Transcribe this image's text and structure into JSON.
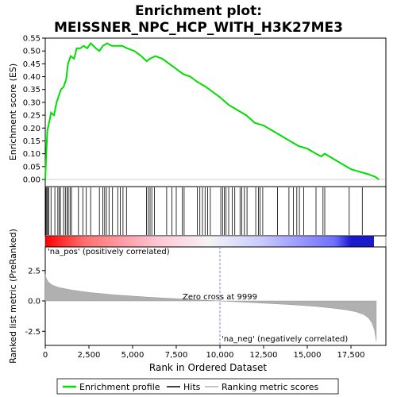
{
  "chart_data": {
    "type": "line",
    "title_line1": "Enrichment plot:",
    "title_line2": "MEISSNER_NPC_HCP_WITH_H3K27ME3",
    "top_panel": {
      "ylabel": "Enrichment score (ES)",
      "ylim": [
        0,
        0.55
      ],
      "yticks": [
        "0.00",
        "0.05",
        "0.10",
        "0.15",
        "0.20",
        "0.25",
        "0.30",
        "0.35",
        "0.40",
        "0.45",
        "0.50",
        "0.55"
      ],
      "ytick_values": [
        0,
        0.05,
        0.1,
        0.15,
        0.2,
        0.25,
        0.3,
        0.35,
        0.4,
        0.45,
        0.5,
        0.55
      ],
      "series_color": "#00dd00",
      "es_curve": [
        [
          0,
          0.0
        ],
        [
          60,
          0.1
        ],
        [
          120,
          0.19
        ],
        [
          250,
          0.23
        ],
        [
          330,
          0.26
        ],
        [
          500,
          0.25
        ],
        [
          650,
          0.3
        ],
        [
          800,
          0.33
        ],
        [
          900,
          0.35
        ],
        [
          1050,
          0.36
        ],
        [
          1200,
          0.39
        ],
        [
          1300,
          0.45
        ],
        [
          1450,
          0.48
        ],
        [
          1650,
          0.47
        ],
        [
          1800,
          0.51
        ],
        [
          2000,
          0.51
        ],
        [
          2200,
          0.52
        ],
        [
          2400,
          0.51
        ],
        [
          2600,
          0.53
        ],
        [
          2900,
          0.51
        ],
        [
          3100,
          0.5
        ],
        [
          3300,
          0.52
        ],
        [
          3550,
          0.53
        ],
        [
          3800,
          0.52
        ],
        [
          4100,
          0.52
        ],
        [
          4400,
          0.52
        ],
        [
          4700,
          0.51
        ],
        [
          5100,
          0.5
        ],
        [
          5500,
          0.48
        ],
        [
          5800,
          0.46
        ],
        [
          6000,
          0.47
        ],
        [
          6300,
          0.48
        ],
        [
          6700,
          0.47
        ],
        [
          7100,
          0.45
        ],
        [
          7500,
          0.43
        ],
        [
          7900,
          0.41
        ],
        [
          8300,
          0.4
        ],
        [
          8700,
          0.38
        ],
        [
          9200,
          0.36
        ],
        [
          9600,
          0.34
        ],
        [
          10000,
          0.32
        ],
        [
          10500,
          0.29
        ],
        [
          11000,
          0.27
        ],
        [
          11500,
          0.25
        ],
        [
          12000,
          0.22
        ],
        [
          12500,
          0.21
        ],
        [
          13000,
          0.19
        ],
        [
          13500,
          0.17
        ],
        [
          14000,
          0.15
        ],
        [
          14500,
          0.13
        ],
        [
          15000,
          0.12
        ],
        [
          15500,
          0.1
        ],
        [
          15800,
          0.09
        ],
        [
          16000,
          0.1
        ],
        [
          16500,
          0.08
        ],
        [
          17000,
          0.06
        ],
        [
          17500,
          0.04
        ],
        [
          18000,
          0.03
        ],
        [
          18500,
          0.02
        ],
        [
          18900,
          0.01
        ],
        [
          19100,
          0.0
        ]
      ]
    },
    "hits": [
      40,
      90,
      140,
      200,
      330,
      550,
      720,
      800,
      870,
      1050,
      1150,
      1250,
      1320,
      1420,
      1500,
      1900,
      2150,
      2350,
      2600,
      3100,
      3300,
      3400,
      3500,
      3650,
      3850,
      4150,
      4300,
      4450,
      4650,
      5800,
      5900,
      6000,
      6100,
      6250,
      6950,
      7250,
      7500,
      7850,
      7950,
      8700,
      8850,
      9000,
      9150,
      9300,
      9450,
      10050,
      10150,
      10250,
      10350,
      10500,
      10700,
      10850,
      11150,
      11250,
      11400,
      11550,
      12050,
      12200,
      12300,
      12450,
      13300,
      13950,
      14200,
      14400,
      14550,
      14800,
      15500,
      15900,
      16000,
      17400,
      18150
    ],
    "hits_color": "#000000",
    "middle_panel": {
      "na_pos_label": "'na_pos' (positively correlated)",
      "na_neg_label": "'na_neg' (negatively correlated)",
      "label_color": "#cc0000",
      "neg_label_color": "#0000cc"
    },
    "bottom_panel": {
      "ylabel": "Ranked list metric (PreRanked)",
      "xlabel": "Rank in Ordered Dataset",
      "ylim": [
        -3.5,
        3.5
      ],
      "yticks": [
        "2.5",
        "0.0",
        "-2.5"
      ],
      "ytick_values": [
        2.5,
        0.0,
        -2.5
      ],
      "xlim": [
        0,
        19500
      ],
      "xticks": [
        "0",
        "2,500",
        "5,000",
        "7,500",
        "10,000",
        "12,500",
        "15,000",
        "17,500"
      ],
      "xtick_values": [
        0,
        2500,
        5000,
        7500,
        10000,
        12500,
        15000,
        17500
      ],
      "zero_cross_label": "Zero cross at 9999",
      "zero_cross": 9999,
      "metric_curve": [
        [
          0,
          2.2
        ],
        [
          50,
          1.9
        ],
        [
          150,
          1.6
        ],
        [
          400,
          1.3
        ],
        [
          800,
          1.1
        ],
        [
          1500,
          0.9
        ],
        [
          2500,
          0.7
        ],
        [
          4000,
          0.5
        ],
        [
          6000,
          0.3
        ],
        [
          8000,
          0.15
        ],
        [
          9999,
          0.0
        ],
        [
          12000,
          -0.15
        ],
        [
          14000,
          -0.3
        ],
        [
          15500,
          -0.45
        ],
        [
          16500,
          -0.6
        ],
        [
          17300,
          -0.75
        ],
        [
          17800,
          -0.9
        ],
        [
          18200,
          -1.1
        ],
        [
          18500,
          -1.4
        ],
        [
          18700,
          -1.8
        ],
        [
          18850,
          -2.4
        ],
        [
          18950,
          -3.3
        ]
      ],
      "fill_color": "#b0b0b0"
    },
    "legend": {
      "items": [
        {
          "label": "Enrichment profile",
          "color": "#00dd00"
        },
        {
          "label": "Hits",
          "color": "#000000"
        },
        {
          "label": "Ranking metric scores",
          "color": "#b0b0b0"
        }
      ]
    }
  }
}
